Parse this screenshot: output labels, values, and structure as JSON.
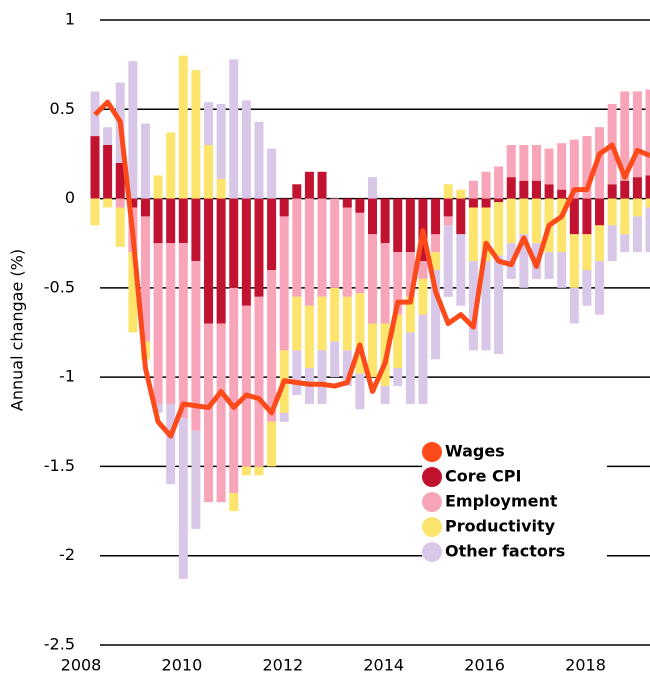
{
  "chart_data": {
    "type": "bar",
    "y_label": "Annual changae (%)",
    "categories": [
      "2008",
      null,
      null,
      null,
      null,
      null,
      null,
      null,
      "2010",
      null,
      null,
      null,
      null,
      null,
      null,
      null,
      "2012",
      null,
      null,
      null,
      null,
      null,
      null,
      null,
      "2014",
      null,
      null,
      null,
      null,
      null,
      null,
      null,
      "2016",
      null,
      null,
      null,
      null,
      null,
      null,
      null,
      "2018",
      null,
      null,
      null,
      null
    ],
    "ylim": [
      -2.5,
      1
    ],
    "yticks": [
      -2.5,
      -2,
      -1.5,
      -1,
      -0.5,
      0,
      0.5,
      1
    ],
    "grid": true,
    "stacked": true,
    "legend": "lower right",
    "series": [
      {
        "name": "Wages",
        "type": "line",
        "color": "#fc4a1a",
        "values": [
          0.47,
          0.54,
          0.43,
          -0.2,
          -0.95,
          -1.25,
          -1.33,
          -1.15,
          -1.16,
          -1.17,
          -1.08,
          -1.17,
          -1.1,
          -1.12,
          -1.2,
          -1.02,
          -1.03,
          -1.04,
          -1.04,
          -1.05,
          -1.03,
          -0.82,
          -1.08,
          -0.92,
          -0.58,
          -0.58,
          -0.18,
          -0.52,
          -0.7,
          -0.65,
          -0.72,
          -0.25,
          -0.35,
          -0.37,
          -0.22,
          -0.38,
          -0.15,
          -0.1,
          0.05,
          0.05,
          0.25,
          0.3,
          0.12,
          0.27,
          0.24
        ]
      },
      {
        "name": "Core CPI",
        "color": "#c1122f",
        "values": [
          0.35,
          0.3,
          0.2,
          -0.05,
          -0.1,
          -0.25,
          -0.25,
          -0.25,
          -0.35,
          -0.7,
          -0.7,
          -0.5,
          -0.6,
          -0.55,
          -0.4,
          -0.1,
          0.08,
          0.15,
          0.15,
          0,
          -0.05,
          -0.08,
          -0.2,
          -0.25,
          -0.3,
          -0.3,
          -0.35,
          -0.2,
          -0.1,
          -0.2,
          -0.05,
          -0.05,
          -0.02,
          0.12,
          0.1,
          0.1,
          0.08,
          0.05,
          -0.2,
          -0.2,
          -0.15,
          0.08,
          0.1,
          0.12,
          0.13
        ]
      },
      {
        "name": "Employment",
        "color": "#f8a5b9",
        "values": [
          0,
          0,
          -0.05,
          -0.25,
          -0.7,
          -0.9,
          -0.9,
          -0.98,
          -0.95,
          -1,
          -1,
          -1.15,
          -0.9,
          -0.95,
          -0.85,
          -0.75,
          -0.55,
          -0.6,
          -0.55,
          -0.5,
          -0.5,
          -0.45,
          -0.5,
          -0.45,
          -0.35,
          -0.25,
          -0.1,
          -0.1,
          -0.05,
          0,
          0.1,
          0.15,
          0.18,
          0.18,
          0.2,
          0.2,
          0.2,
          0.26,
          0.33,
          0.35,
          0.4,
          0.45,
          0.5,
          0.48,
          0.48
        ]
      },
      {
        "name": "Productivity",
        "color": "#fde46d",
        "values": [
          -0.15,
          -0.05,
          -0.22,
          -0.45,
          -0.1,
          0.13,
          0.37,
          0.8,
          0.72,
          0.3,
          0.11,
          -0.1,
          -0.05,
          -0.05,
          -0.25,
          -0.35,
          -0.3,
          -0.35,
          -0.3,
          -0.3,
          -0.3,
          -0.45,
          -0.3,
          -0.35,
          -0.3,
          -0.2,
          -0.2,
          -0.1,
          0.08,
          0.05,
          -0.3,
          -0.3,
          -0.3,
          -0.25,
          -0.2,
          -0.25,
          -0.3,
          -0.3,
          -0.3,
          -0.2,
          -0.2,
          -0.15,
          -0.2,
          -0.1,
          -0.05
        ]
      },
      {
        "name": "Other factors",
        "color": "#d9c7e8",
        "values": [
          0.25,
          0.1,
          0.45,
          0.77,
          0.42,
          -0.05,
          -0.45,
          -0.9,
          -0.55,
          0.24,
          0.42,
          0.78,
          0.55,
          0.43,
          0.28,
          -0.05,
          -0.25,
          -0.2,
          -0.3,
          -0.2,
          -0.2,
          -0.2,
          0.12,
          -0.1,
          -0.1,
          -0.4,
          -0.5,
          -0.5,
          -0.4,
          -0.4,
          -0.5,
          -0.5,
          -0.55,
          -0.2,
          -0.3,
          -0.2,
          -0.15,
          -0.2,
          -0.2,
          -0.2,
          -0.3,
          -0.2,
          -0.1,
          -0.2,
          -0.25
        ]
      }
    ]
  }
}
